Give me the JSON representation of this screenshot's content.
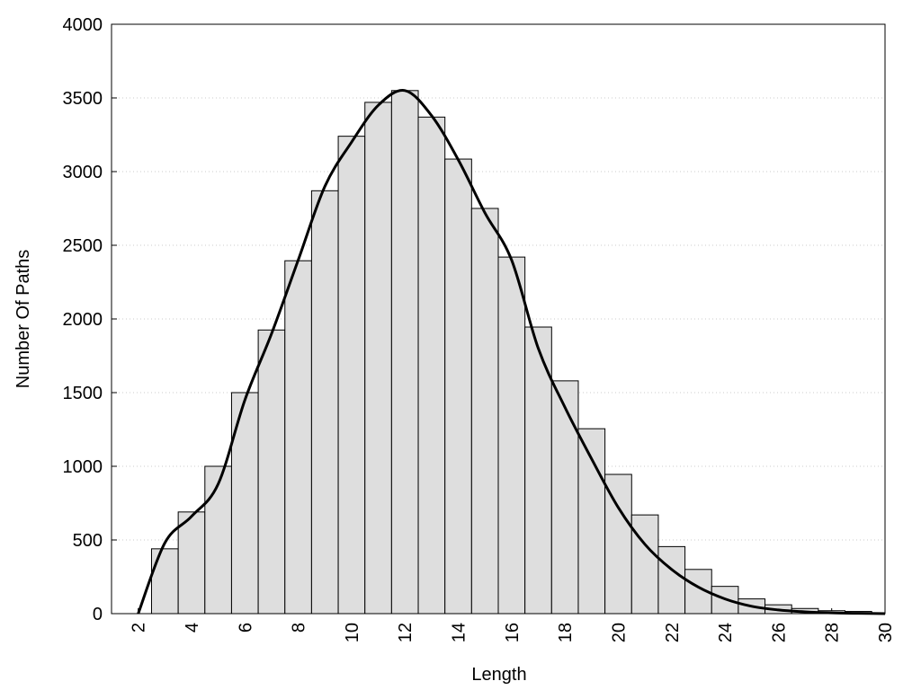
{
  "chart_data": {
    "type": "histogram",
    "xlabel": "Length",
    "ylabel": "Number Of Paths",
    "bins": [
      2.5,
      3.5,
      4.5,
      5.5,
      6.5,
      7.5,
      8.5,
      9.5,
      10.5,
      11.5,
      12.5,
      13.5,
      14.5,
      15.5,
      16.5,
      17.5,
      18.5,
      19.5,
      20.5,
      21.5,
      22.5,
      23.5,
      24.5,
      25.5,
      26.5,
      27.5,
      28.5,
      29.5
    ],
    "values": [
      440,
      690,
      1000,
      1500,
      1925,
      2395,
      2870,
      3240,
      3470,
      3550,
      3370,
      3085,
      2750,
      2420,
      1945,
      1580,
      1255,
      945,
      670,
      455,
      300,
      185,
      100,
      60,
      35,
      20,
      15
    ],
    "color": "#dedede",
    "curve": {
      "color": "#000000",
      "x": [
        2,
        3,
        4,
        5,
        6,
        7,
        8,
        9,
        10,
        11,
        12,
        13,
        14,
        15,
        16,
        17,
        18,
        19,
        20,
        21,
        22,
        23,
        24,
        25,
        26,
        27,
        28,
        29,
        30
      ],
      "values": [
        0,
        480,
        660,
        880,
        1450,
        1900,
        2400,
        2900,
        3200,
        3450,
        3550,
        3380,
        3080,
        2720,
        2400,
        1800,
        1400,
        1050,
        720,
        470,
        300,
        180,
        100,
        50,
        25,
        12,
        5,
        2,
        0
      ]
    },
    "xlim": [
      1,
      30
    ],
    "ylim": [
      0,
      4000
    ],
    "xticks": [
      2,
      4,
      6,
      8,
      10,
      12,
      14,
      16,
      18,
      20,
      22,
      24,
      26,
      28,
      30
    ],
    "yticks": [
      0,
      500,
      1000,
      1500,
      2000,
      2500,
      3000,
      3500,
      4000
    ],
    "grid": true
  }
}
